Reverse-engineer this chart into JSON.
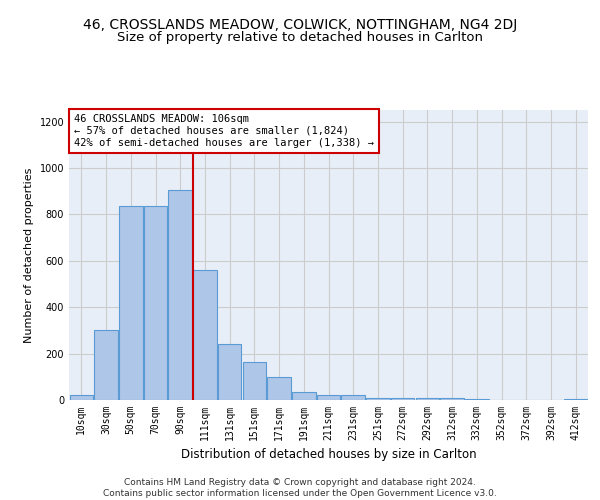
{
  "title_main": "46, CROSSLANDS MEADOW, COLWICK, NOTTINGHAM, NG4 2DJ",
  "title_sub": "Size of property relative to detached houses in Carlton",
  "xlabel": "Distribution of detached houses by size in Carlton",
  "ylabel": "Number of detached properties",
  "bar_labels": [
    "10sqm",
    "30sqm",
    "50sqm",
    "70sqm",
    "90sqm",
    "111sqm",
    "131sqm",
    "151sqm",
    "171sqm",
    "191sqm",
    "211sqm",
    "231sqm",
    "251sqm",
    "272sqm",
    "292sqm",
    "312sqm",
    "332sqm",
    "352sqm",
    "372sqm",
    "392sqm",
    "412sqm"
  ],
  "bar_values": [
    20,
    300,
    835,
    835,
    905,
    560,
    240,
    162,
    100,
    33,
    20,
    20,
    10,
    10,
    10,
    10,
    5,
    0,
    0,
    0,
    5
  ],
  "bar_color": "#aec6e8",
  "bar_edge_color": "#5b9bd5",
  "vline_idx": 4.5,
  "vline_color": "#cc0000",
  "annotation_text": "46 CROSSLANDS MEADOW: 106sqm\n← 57% of detached houses are smaller (1,824)\n42% of semi-detached houses are larger (1,338) →",
  "annotation_box_color": "#ffffff",
  "annotation_box_edge": "#cc0000",
  "ylim": [
    0,
    1250
  ],
  "yticks": [
    0,
    200,
    400,
    600,
    800,
    1000,
    1200
  ],
  "grid_color": "#cccccc",
  "bg_color": "#e8eef7",
  "footer_text": "Contains HM Land Registry data © Crown copyright and database right 2024.\nContains public sector information licensed under the Open Government Licence v3.0.",
  "title_main_fontsize": 10,
  "title_sub_fontsize": 9.5,
  "xlabel_fontsize": 8.5,
  "ylabel_fontsize": 8,
  "tick_fontsize": 7,
  "annotation_fontsize": 7.5,
  "footer_fontsize": 6.5
}
